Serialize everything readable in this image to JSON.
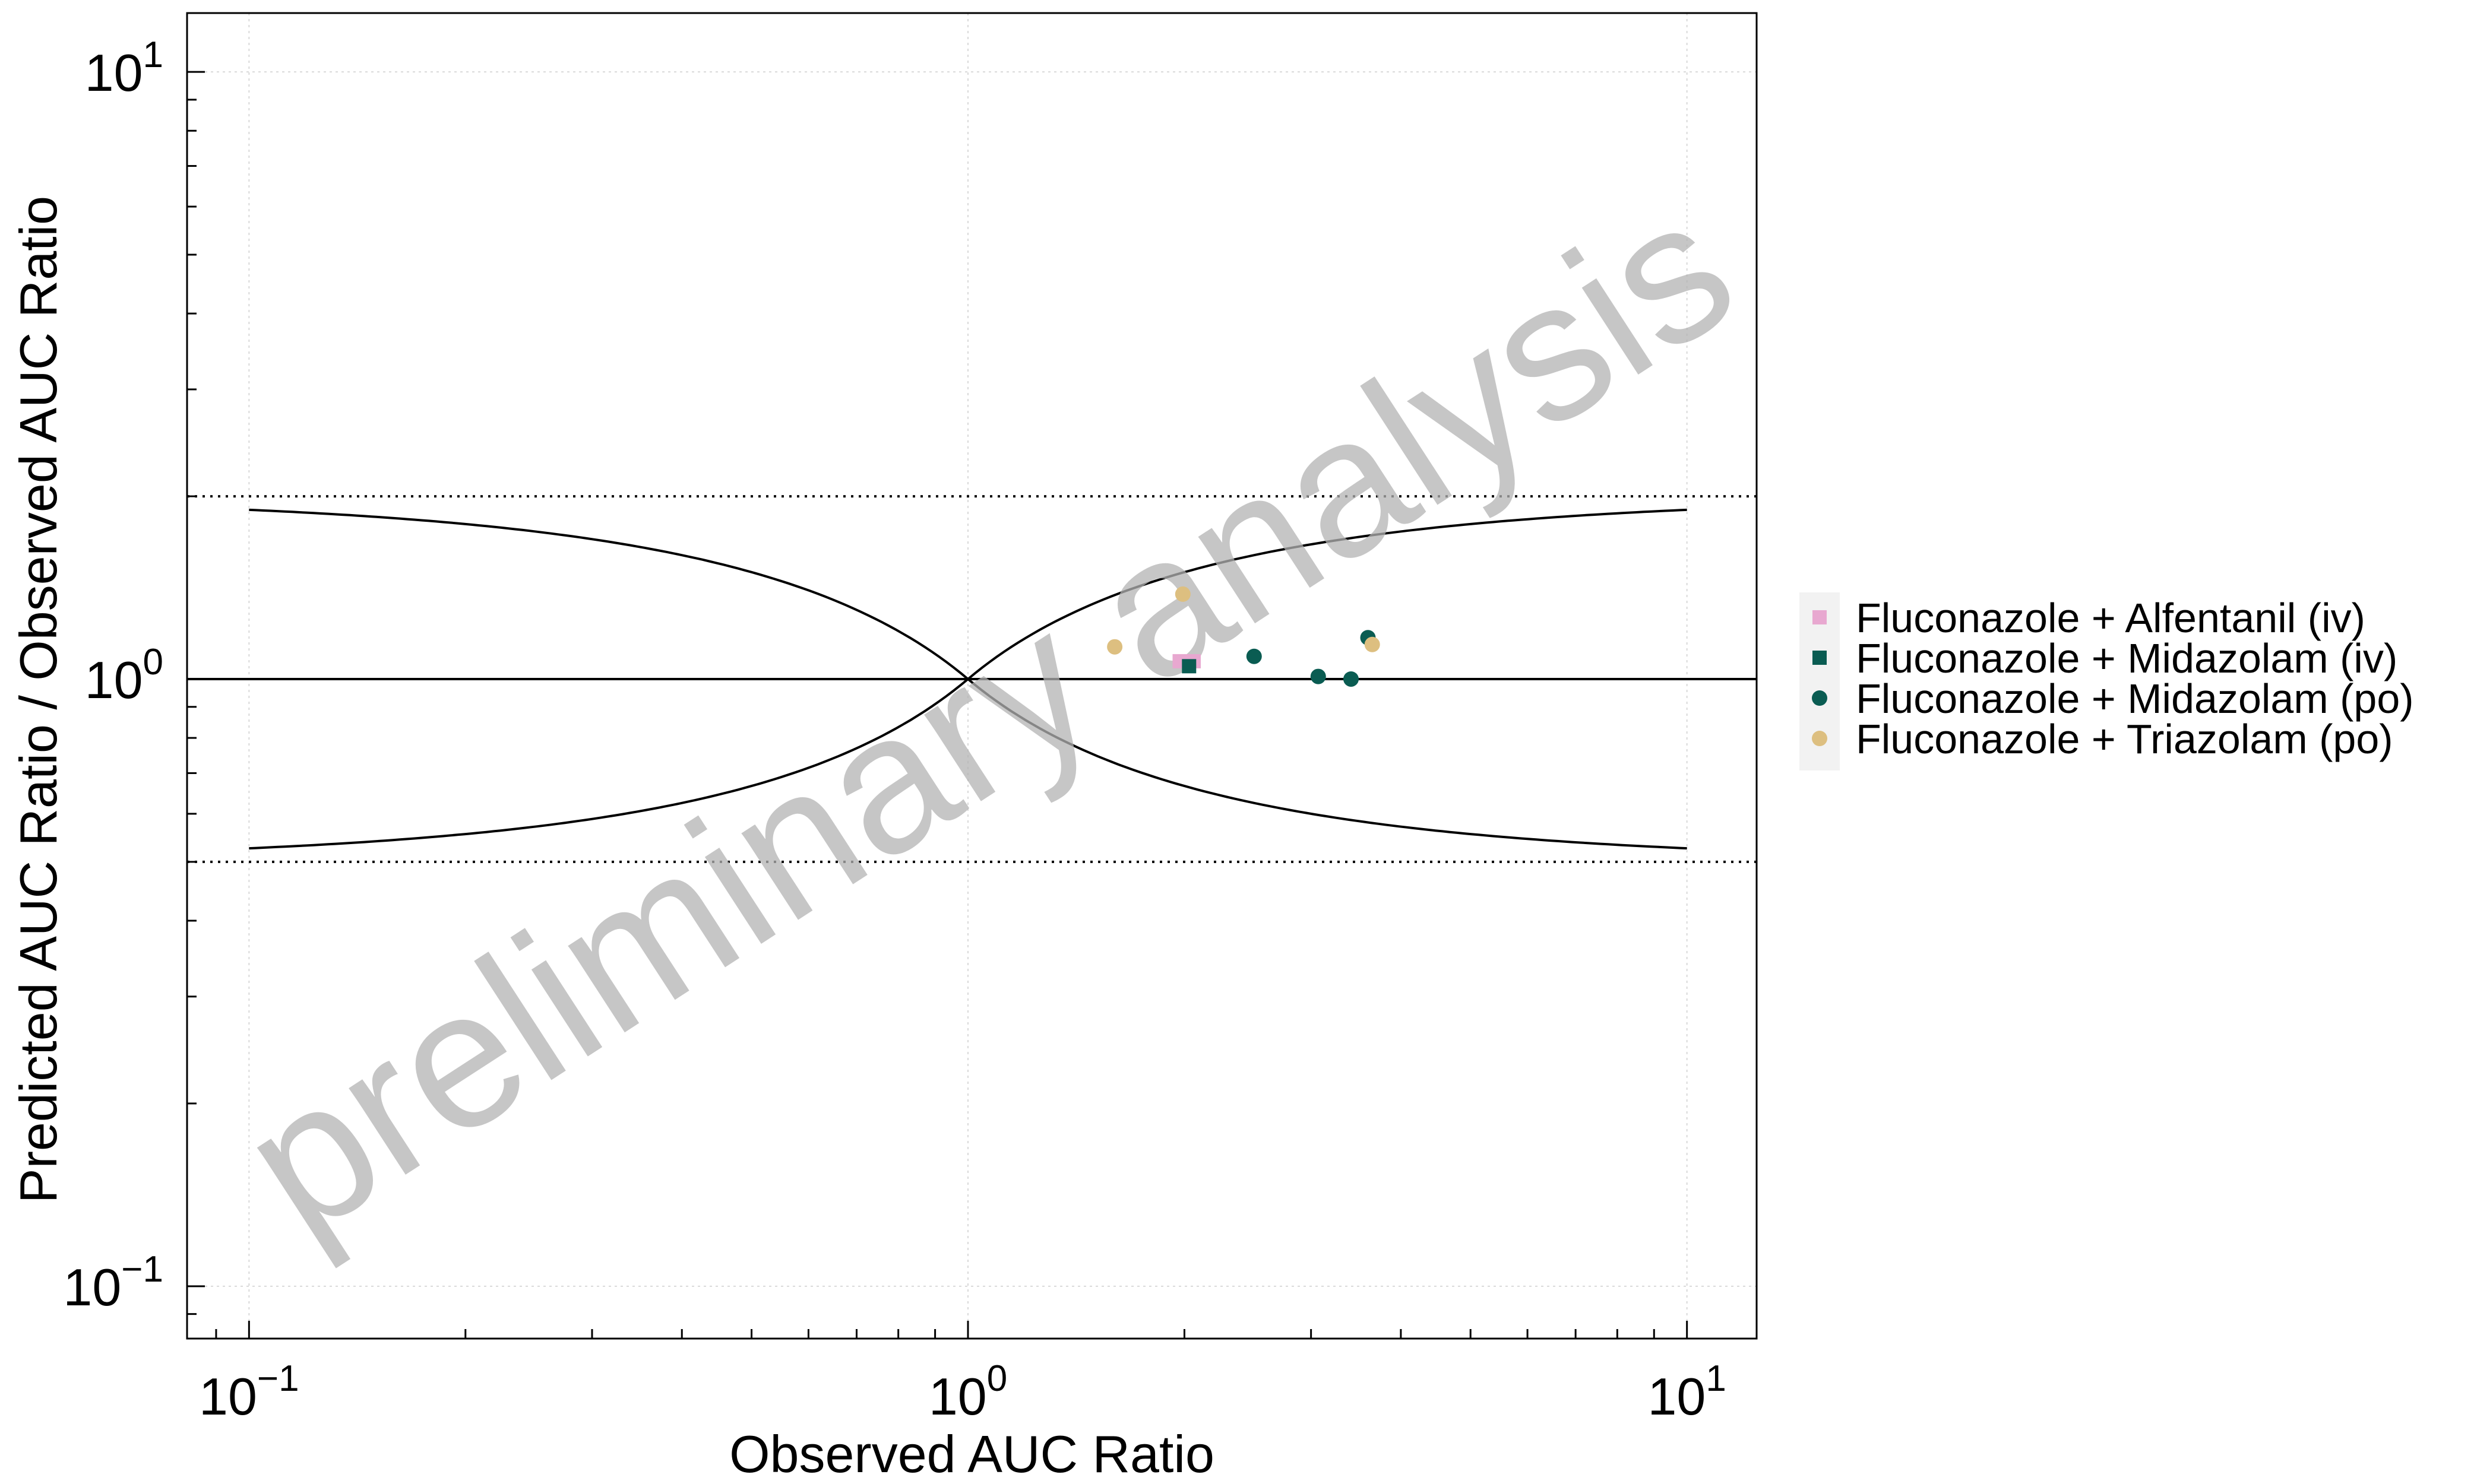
{
  "chart_data": {
    "type": "scatter",
    "xlabel": "Observed AUC Ratio",
    "ylabel": "Predicted AUC Ratio / Observed AUC Ratio",
    "x_scale": "log",
    "y_scale": "log",
    "xlim": [
      0.082,
      12.5
    ],
    "ylim": [
      0.082,
      12.5
    ],
    "x_ticks": [
      {
        "base": "10",
        "exp": "−1"
      },
      {
        "base": "10",
        "exp": "0"
      },
      {
        "base": "10",
        "exp": "1"
      }
    ],
    "y_ticks": [
      {
        "base": "10",
        "exp": "−1"
      },
      {
        "base": "10",
        "exp": "0"
      },
      {
        "base": "10",
        "exp": "1"
      }
    ],
    "grid": true,
    "legend_position": "right",
    "watermark": "preliminary analysis",
    "reference_lines": [
      {
        "kind": "identity",
        "y": 1,
        "style": "solid"
      },
      {
        "kind": "two-fold upper",
        "y": 2,
        "style": "dotted"
      },
      {
        "kind": "two-fold lower",
        "y": 0.5,
        "style": "dotted"
      }
    ],
    "guest_limits": {
      "delta": 1,
      "x_range": [
        0.1,
        10
      ],
      "style": "solid"
    },
    "series": [
      {
        "name": "Fluconazole + Alfentanil (iv)",
        "marker": "square",
        "color": "#e8a8d0",
        "points": [
          [
            1.97,
            1.07
          ],
          [
            2.06,
            1.07
          ]
        ]
      },
      {
        "name": "Fluconazole + Midazolam (iv)",
        "marker": "square",
        "color": "#0a5c52",
        "points": [
          [
            2.03,
            1.05
          ]
        ]
      },
      {
        "name": "Fluconazole + Midazolam (po)",
        "marker": "circle",
        "color": "#0a5c52",
        "points": [
          [
            2.5,
            1.09
          ],
          [
            3.07,
            1.01
          ],
          [
            3.41,
            1.0
          ],
          [
            3.6,
            1.17
          ]
        ]
      },
      {
        "name": "Fluconazole + Triazolam (po)",
        "marker": "circle",
        "color": "#ddbf80",
        "points": [
          [
            1.6,
            1.13
          ],
          [
            1.99,
            1.38
          ],
          [
            3.65,
            1.14
          ]
        ]
      }
    ]
  }
}
